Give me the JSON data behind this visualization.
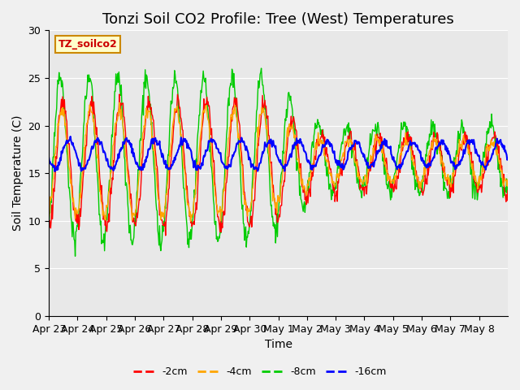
{
  "title": "Tonzi Soil CO2 Profile: Tree (West) Temperatures",
  "xlabel": "Time",
  "ylabel": "Soil Temperature (C)",
  "ylim": [
    0,
    30
  ],
  "yticks": [
    0,
    5,
    10,
    15,
    20,
    25,
    30
  ],
  "legend_label": "TZ_soilco2",
  "series_labels": [
    "-2cm",
    "-4cm",
    "-8cm",
    "-16cm"
  ],
  "series_colors": [
    "#ff0000",
    "#ffa500",
    "#00cc00",
    "#0000ff"
  ],
  "xtick_labels": [
    "Apr 23",
    "Apr 24",
    "Apr 25",
    "Apr 26",
    "Apr 27",
    "Apr 28",
    "Apr 29",
    "Apr 30",
    "May 1",
    "May 2",
    "May 3",
    "May 4",
    "May 5",
    "May 6",
    "May 7",
    "May 8"
  ],
  "background_color": "#e8e8e8",
  "plot_bg_color": "#e8e8e8",
  "title_fontsize": 13,
  "axis_fontsize": 10,
  "tick_fontsize": 9
}
